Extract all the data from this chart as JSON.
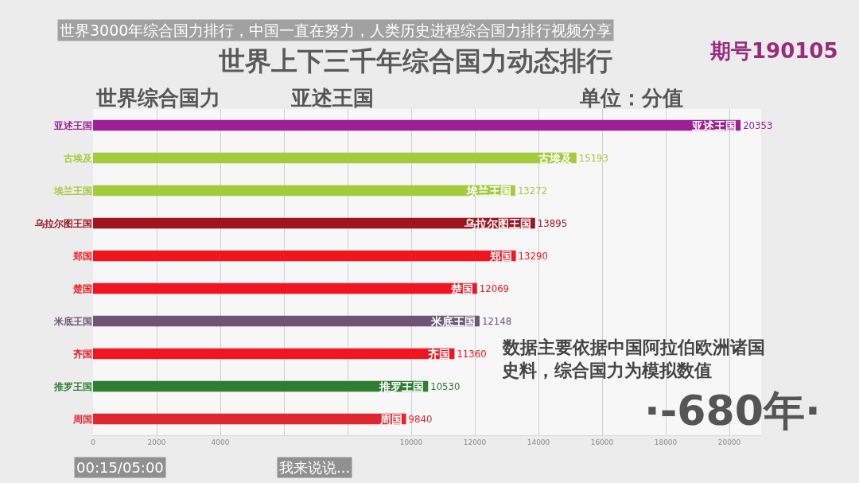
{
  "chart_data": {
    "type": "bar",
    "orientation": "horizontal",
    "title": "世界上下三千年综合国力动态排行",
    "subtitle": "世界综合国力",
    "categories": [
      "亚述王国",
      "古埃及",
      "埃兰王国",
      "乌拉尔图王国",
      "郑国",
      "楚国",
      "米底王国",
      "齐国",
      "推罗王国",
      "周国"
    ],
    "values": [
      20353,
      15193,
      13272,
      13895,
      13290,
      12069,
      12148,
      11360,
      10530,
      9840
    ],
    "colors": [
      "#9c1f96",
      "#a3cc3c",
      "#a3cc3c",
      "#a0141e",
      "#f2141e",
      "#f2141e",
      "#6e5577",
      "#f2141e",
      "#2e7d32",
      "#e0262e"
    ],
    "data_labels": true,
    "xlim": [
      0,
      21000
    ],
    "xticks": [
      0,
      2000,
      4000,
      {
        "value": 6000,
        "label": null
      },
      {
        "value": 8000,
        "label": null
      },
      10000,
      12000,
      14000,
      16000,
      18000,
      20000
    ],
    "grid": "x",
    "annotations": [
      "亚述王国",
      "单位：分值",
      "期号190105",
      "数据主要依据中国阿拉伯欧洲诸国",
      "史料，综合国力为模拟数值",
      "·-680年·",
      "世界3000年综合国力排行，中国一直在努力，人类历史进程综合国力排行视频分享",
      "00:15/05:00",
      "我来说说..."
    ]
  }
}
